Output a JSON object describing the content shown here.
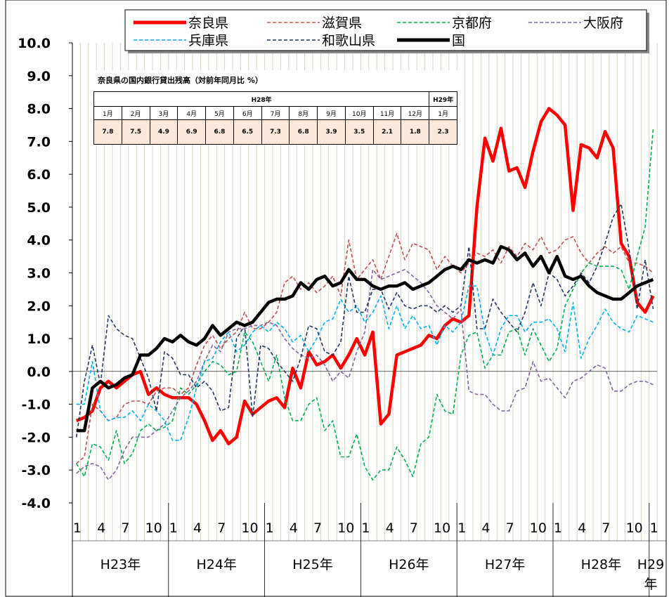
{
  "chart_data": {
    "type": "line",
    "categories": [
      "1",
      null,
      null,
      "4",
      null,
      null,
      "7",
      null,
      null,
      "10",
      null,
      null,
      "1",
      null,
      null,
      "4",
      null,
      null,
      "7",
      null,
      null,
      "10",
      null,
      null,
      "1",
      null,
      null,
      "4",
      null,
      null,
      "7",
      null,
      null,
      "10",
      null,
      null,
      "1",
      null,
      null,
      "4",
      null,
      null,
      "7",
      null,
      null,
      "10",
      null,
      null,
      "1",
      null,
      null,
      "4",
      null,
      null,
      "7",
      null,
      null,
      "10",
      null,
      null,
      "1",
      null,
      null,
      "4",
      null,
      null,
      "7",
      null,
      null,
      "10",
      null,
      null,
      "1"
    ],
    "year_labels": [
      "H23年",
      "H24年",
      "H25年",
      "H26年",
      "H27年",
      "H28年",
      "H29年"
    ],
    "ylim": [
      -4,
      10
    ],
    "yticks": [
      {
        "value": -4,
        "label": "-4.0"
      },
      {
        "value": -3,
        "label": "-3.0"
      },
      {
        "value": -2,
        "label": "-2.0"
      },
      {
        "value": -1,
        "label": "-1.0"
      },
      {
        "value": 0,
        "label": "0.0"
      },
      {
        "value": 1,
        "label": "1.0"
      },
      {
        "value": 2,
        "label": "2.0"
      },
      {
        "value": 3,
        "label": "3.0"
      },
      {
        "value": 4,
        "label": "4.0"
      },
      {
        "value": 5,
        "label": "5.0"
      },
      {
        "value": 6,
        "label": "6.0"
      },
      {
        "value": 7,
        "label": "7.0"
      },
      {
        "value": 8,
        "label": "8.0"
      },
      {
        "value": 9,
        "label": "9.0"
      },
      {
        "value": 10,
        "label": "10.0"
      }
    ],
    "legend": "top",
    "series": [
      {
        "name": "奈良県",
        "color": "#ff0000",
        "dashed": false,
        "values": [
          -1.5,
          -1.4,
          -1.2,
          -0.5,
          -0.3,
          -0.5,
          -0.3,
          -0.1,
          0.0,
          -0.7,
          -0.5,
          -0.7,
          -0.8,
          -0.8,
          -0.8,
          -1.0,
          -1.5,
          -2.1,
          -1.8,
          -2.2,
          -2.0,
          -0.9,
          -1.3,
          -1.1,
          -0.9,
          -0.8,
          -1.1,
          0.1,
          -0.5,
          0.6,
          0.2,
          0.3,
          0.5,
          0.1,
          0.5,
          1.0,
          0.5,
          1.2,
          -1.6,
          -1.3,
          0.5,
          0.6,
          0.7,
          0.8,
          1.1,
          1.0,
          1.4,
          1.6,
          1.5,
          1.7,
          5.0,
          7.1,
          6.4,
          7.4,
          6.1,
          6.2,
          5.6,
          6.7,
          7.6,
          8.0,
          7.8,
          7.5,
          4.9,
          6.9,
          6.8,
          6.5,
          7.3,
          6.8,
          3.9,
          3.5,
          2.1,
          1.8,
          2.3
        ]
      },
      {
        "name": "滋賀県",
        "color": "#c0504d",
        "dashed": true,
        "values": [
          -2.8,
          -2.6,
          -1.0,
          -1.2,
          -1.5,
          -1.4,
          -1.0,
          -0.9,
          -0.9,
          -1.0,
          -0.6,
          -0.5,
          -0.5,
          -0.7,
          -0.5,
          0.2,
          0.8,
          1.1,
          0.7,
          1.0,
          1.2,
          1.8,
          1.3,
          1.3,
          1.5,
          1.8,
          2.7,
          2.9,
          2.5,
          2.7,
          2.4,
          2.6,
          2.9,
          2.3,
          4.0,
          2.8,
          3.1,
          3.4,
          2.8,
          3.5,
          4.2,
          3.4,
          3.9,
          3.8,
          3.7,
          3.1,
          3.5,
          3.2,
          3.0,
          3.3,
          3.6,
          3.5,
          3.7,
          3.3,
          3.8,
          3.5,
          3.9,
          3.7,
          4.1,
          3.6,
          3.7,
          4.0,
          4.1,
          3.6,
          3.3,
          3.6,
          3.8,
          3.6,
          3.8,
          3.3,
          3.3,
          3.2,
          3.0
        ]
      },
      {
        "name": "京都府",
        "color": "#00b050",
        "dashed": true,
        "values": [
          -2.8,
          -3.2,
          -2.2,
          -2.3,
          -2.7,
          -1.8,
          -2.8,
          -2.5,
          -1.8,
          -1.6,
          -1.8,
          -1.7,
          -1.5,
          -0.5,
          -0.7,
          -0.4,
          0.0,
          0.3,
          0.2,
          -0.1,
          0.0,
          1.2,
          0.9,
          0.3,
          -0.3,
          0.5,
          -0.8,
          -1.5,
          -1.5,
          -1.0,
          -0.8,
          -1.8,
          -1.5,
          -2.6,
          -2.6,
          -1.9,
          -2.9,
          -3.3,
          -3.0,
          -3.0,
          -2.3,
          -2.7,
          -3.2,
          -2.2,
          -2.0,
          -0.7,
          -1.2,
          -1.3,
          0.5,
          1.1,
          1.2,
          0.1,
          0.5,
          0.5,
          1.2,
          1.3,
          0.5,
          1.3,
          0.8,
          0.3,
          0.7,
          2.0,
          2.5,
          3.0,
          3.3,
          3.2,
          3.2,
          3.2,
          3.1,
          2.5,
          3.5,
          4.4,
          7.4
        ]
      },
      {
        "name": "大阪府",
        "color": "#8064a2",
        "dashed": true,
        "values": [
          -3.1,
          -2.9,
          -2.8,
          -2.9,
          -3.3,
          -3.0,
          -2.4,
          -2.0,
          -2.0,
          -2.0,
          -1.8,
          -1.6,
          -1.2,
          -0.8,
          -0.6,
          -0.3,
          0.3,
          0.8,
          0.6,
          1.2,
          1.3,
          1.3,
          1.4,
          1.4,
          1.5,
          1.4,
          1.0,
          0.7,
          0.5,
          0.4,
          0.5,
          0.2,
          -0.3,
          0.0,
          -0.2,
          0.6,
          1.2,
          3.1,
          2.8,
          2.9,
          3.0,
          3.1,
          2.9,
          2.7,
          2.4,
          2.0,
          1.8,
          1.6,
          1.9,
          -0.6,
          -0.7,
          -0.7,
          -1.0,
          -1.2,
          -1.2,
          -0.6,
          -0.5,
          0.3,
          -0.3,
          -0.2,
          -0.5,
          -0.8,
          -0.3,
          -0.2,
          0.0,
          0.2,
          0.1,
          -0.6,
          -0.6,
          -0.4,
          -0.3,
          -0.3,
          -0.4
        ]
      },
      {
        "name": "兵庫県",
        "color": "#00b0f0",
        "dashed": true,
        "values": [
          -1.0,
          -1.0,
          0.3,
          -1.2,
          -1.5,
          -1.4,
          -1.4,
          -1.2,
          -1.5,
          -1.0,
          -1.2,
          -1.5,
          -2.1,
          -2.1,
          -1.4,
          -0.5,
          0.3,
          0.4,
          0.9,
          1.2,
          0.6,
          0.8,
          1.2,
          1.4,
          1.2,
          1.5,
          1.3,
          0.9,
          1.1,
          0.6,
          1.0,
          1.5,
          1.6,
          2.2,
          1.8,
          2.0,
          1.5,
          1.8,
          2.3,
          1.3,
          2.0,
          1.3,
          1.7,
          1.3,
          1.4,
          0.8,
          1.4,
          1.2,
          1.5,
          2.6,
          2.6,
          1.2,
          0.5,
          1.3,
          1.7,
          1.7,
          1.2,
          1.5,
          1.5,
          1.6,
          1.3,
          0.6,
          2.1,
          0.4,
          1.0,
          1.4,
          1.9,
          1.5,
          1.3,
          1.2,
          1.7,
          1.6,
          1.5
        ]
      },
      {
        "name": "和歌山県",
        "color": "#1f3864",
        "dashed": true,
        "values": [
          -2.0,
          -0.3,
          0.8,
          -0.4,
          1.7,
          1.3,
          1.1,
          1.0,
          0.4,
          -0.2,
          -1.2,
          0.6,
          0.4,
          -0.1,
          -0.1,
          -0.5,
          -0.3,
          -0.6,
          -1.2,
          -1.1,
          1.0,
          1.4,
          -1.4,
          0.8,
          0.7,
          0.3,
          0.0,
          -0.3,
          0.4,
          1.4,
          1.3,
          0.6,
          0.5,
          0.9,
          2.9,
          1.8,
          1.8,
          2.5,
          2.5,
          1.9,
          2.4,
          2.0,
          1.9,
          2.0,
          2.0,
          1.8,
          2.0,
          1.8,
          2.0,
          3.8,
          1.3,
          1.3,
          2.2,
          1.8,
          1.5,
          1.2,
          1.8,
          2.7,
          2.0,
          3.0,
          2.8,
          2.3,
          2.6,
          3.0,
          2.7,
          3.2,
          3.9,
          4.7,
          5.1,
          3.7,
          1.9,
          3.4,
          1.9
        ]
      },
      {
        "name": "国",
        "color": "#000000",
        "dashed": false,
        "values": [
          -1.8,
          -1.8,
          -0.5,
          -0.3,
          -0.5,
          -0.4,
          -0.2,
          -0.1,
          0.5,
          0.5,
          0.7,
          1.0,
          0.9,
          1.1,
          0.9,
          0.8,
          1.0,
          1.4,
          1.1,
          1.3,
          1.5,
          1.4,
          1.5,
          1.8,
          2.1,
          2.2,
          2.2,
          2.3,
          2.7,
          2.5,
          2.8,
          2.9,
          2.6,
          2.7,
          3.1,
          2.8,
          2.8,
          2.6,
          2.5,
          2.6,
          2.6,
          2.7,
          2.5,
          2.6,
          2.7,
          2.9,
          3.1,
          3.2,
          3.1,
          3.4,
          3.3,
          3.4,
          3.3,
          3.8,
          3.7,
          3.4,
          3.6,
          3.2,
          3.5,
          3.0,
          3.5,
          2.9,
          2.8,
          2.9,
          2.6,
          2.4,
          2.3,
          2.2,
          2.2,
          2.4,
          2.6,
          2.7,
          2.8
        ]
      }
    ]
  },
  "inset_table": {
    "title": "奈良県の国内銀行貸出残高（対前年同月比 %）",
    "year_headers": [
      "H28年",
      "H29年"
    ],
    "months": [
      "1月",
      "2月",
      "3月",
      "4月",
      "5月",
      "6月",
      "7月",
      "8月",
      "9月",
      "10月",
      "11月",
      "12月",
      "1月"
    ],
    "values": [
      "7.8",
      "7.5",
      "4.9",
      "6.9",
      "6.8",
      "6.5",
      "7.3",
      "6.8",
      "3.9",
      "3.5",
      "2.1",
      "1.8",
      "2.3"
    ]
  }
}
